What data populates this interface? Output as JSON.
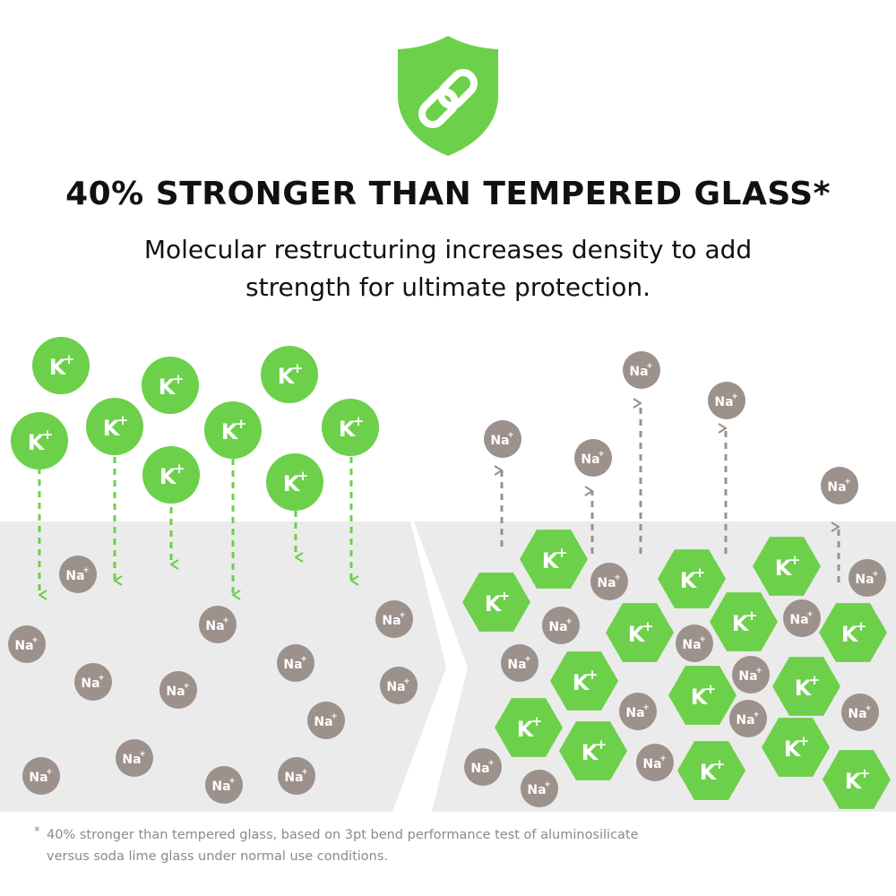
{
  "badge": {
    "icon": "shield-link-icon",
    "color": "#6cd04a"
  },
  "headline": "40% STRONGER THAN TEMPERED GLASS*",
  "subtitle": {
    "line1": "Molecular restructuring increases density to add",
    "line2": "strength for ultimate protection."
  },
  "ions": {
    "potassium": {
      "label": "K",
      "charge": "+",
      "color": "#6cd04a"
    },
    "sodium": {
      "label": "Na",
      "charge": "+",
      "color": "#9c918b"
    }
  },
  "colors": {
    "glass": "#ebebeb",
    "arrow_green": "#6cd04a",
    "arrow_gray": "#9c918b"
  },
  "footnote": {
    "star": "*",
    "line1": "40% stronger than tempered glass, based on 3pt bend performance test of aluminosilicate",
    "line2": "versus soda lime glass under normal use conditions."
  }
}
